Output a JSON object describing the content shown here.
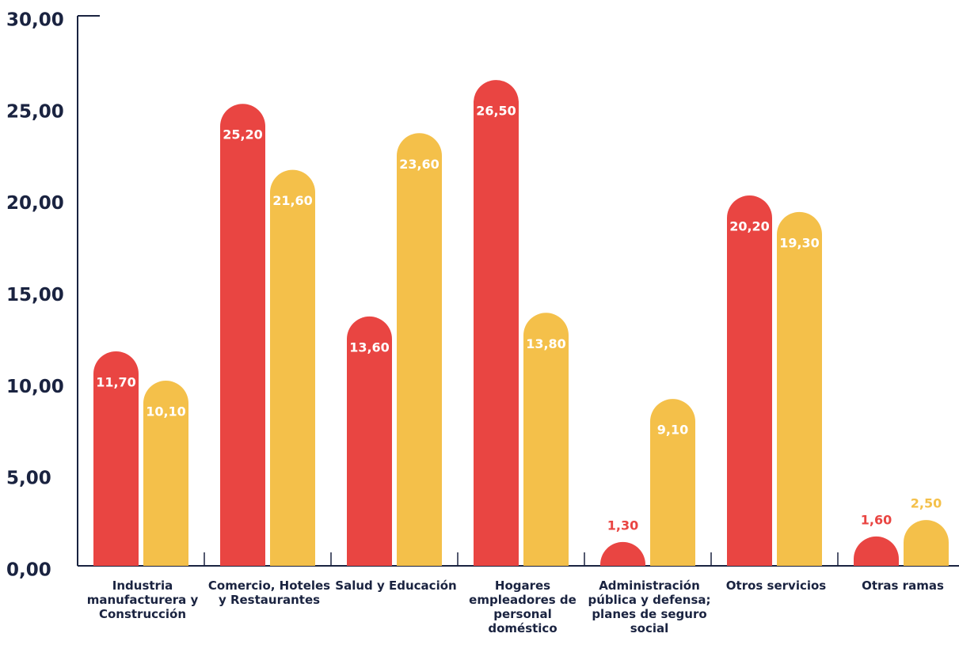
{
  "chart_data": {
    "type": "bar",
    "categories": [
      "Industria manufacturera y Construcción",
      "Comercio, Hoteles y Restaurantes",
      "Salud y Educación",
      "Hogares empleadores de personal doméstico",
      "Administración pública y defensa; planes de seguro social",
      "Otros servicios",
      "Otras ramas"
    ],
    "series": [
      {
        "color": "#e94542",
        "values": [
          11.7,
          25.2,
          13.6,
          26.5,
          1.3,
          20.2,
          1.6
        ],
        "value_labels": [
          "11,70",
          "25,20",
          "13,60",
          "26,50",
          "1,30",
          "20,20",
          "1,60"
        ]
      },
      {
        "color": "#f4c04a",
        "values": [
          10.1,
          21.6,
          23.6,
          13.8,
          9.1,
          19.3,
          2.5
        ],
        "value_labels": [
          "10,10",
          "21,60",
          "23,60",
          "13,80",
          "9,10",
          "19,30",
          "2,50"
        ]
      }
    ],
    "ylim": [
      0,
      30
    ],
    "yticks": [
      {
        "value": 0,
        "label": "0,00"
      },
      {
        "value": 5,
        "label": "5,00"
      },
      {
        "value": 10,
        "label": "10,00"
      },
      {
        "value": 15,
        "label": "15,00"
      },
      {
        "value": 20,
        "label": "20,00"
      },
      {
        "value": 25,
        "label": "25,00"
      },
      {
        "value": 30,
        "label": "30,00"
      }
    ]
  }
}
